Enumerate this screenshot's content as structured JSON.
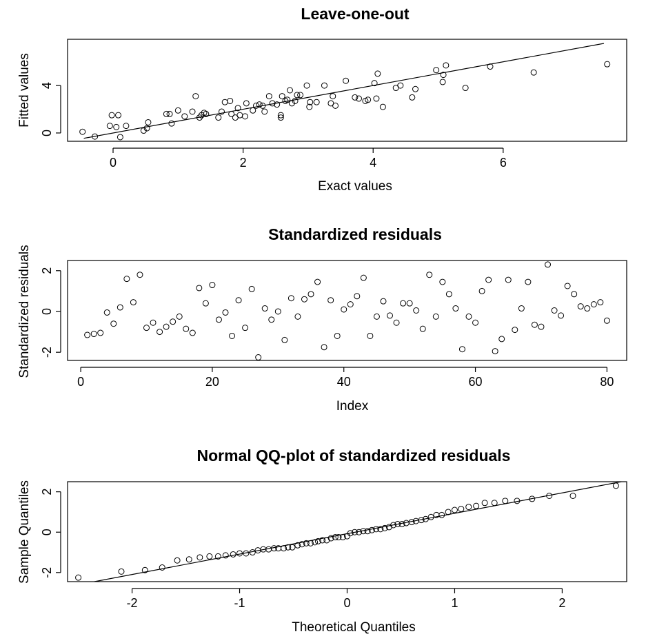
{
  "chart_data": [
    {
      "type": "scatter",
      "title": "Leave-one-out",
      "xlabel": "Exact values",
      "ylabel": "Fitted values",
      "xlim": [
        -0.7,
        7.9
      ],
      "ylim": [
        -0.7,
        7.9
      ],
      "xticks": [
        0,
        2,
        4,
        6
      ],
      "yticks": [
        0,
        4
      ],
      "grid": false,
      "ref_line": [
        [
          -0.45,
          -0.45
        ],
        [
          7.55,
          7.55
        ]
      ],
      "points": [
        {
          "x": -0.47,
          "y": 0.1
        },
        {
          "x": -0.28,
          "y": -0.3
        },
        {
          "x": -0.05,
          "y": 0.6
        },
        {
          "x": -0.02,
          "y": 1.5
        },
        {
          "x": 0.05,
          "y": 0.5
        },
        {
          "x": 0.08,
          "y": 1.5
        },
        {
          "x": 0.11,
          "y": -0.35
        },
        {
          "x": 0.2,
          "y": 0.6
        },
        {
          "x": 0.47,
          "y": 0.2
        },
        {
          "x": 0.52,
          "y": 0.4
        },
        {
          "x": 0.54,
          "y": 0.9
        },
        {
          "x": 0.82,
          "y": 1.6
        },
        {
          "x": 0.87,
          "y": 1.6
        },
        {
          "x": 0.9,
          "y": 0.8
        },
        {
          "x": 1.0,
          "y": 1.9
        },
        {
          "x": 1.1,
          "y": 1.4
        },
        {
          "x": 1.22,
          "y": 1.8
        },
        {
          "x": 1.27,
          "y": 3.1
        },
        {
          "x": 1.33,
          "y": 1.3
        },
        {
          "x": 1.36,
          "y": 1.5
        },
        {
          "x": 1.4,
          "y": 1.7
        },
        {
          "x": 1.43,
          "y": 1.6
        },
        {
          "x": 1.62,
          "y": 1.3
        },
        {
          "x": 1.67,
          "y": 1.8
        },
        {
          "x": 1.72,
          "y": 2.6
        },
        {
          "x": 1.8,
          "y": 2.7
        },
        {
          "x": 1.82,
          "y": 1.6
        },
        {
          "x": 1.88,
          "y": 1.3
        },
        {
          "x": 1.92,
          "y": 2.1
        },
        {
          "x": 1.95,
          "y": 1.5
        },
        {
          "x": 2.03,
          "y": 1.4
        },
        {
          "x": 2.05,
          "y": 2.5
        },
        {
          "x": 2.15,
          "y": 1.9
        },
        {
          "x": 2.2,
          "y": 2.3
        },
        {
          "x": 2.25,
          "y": 2.4
        },
        {
          "x": 2.3,
          "y": 2.3
        },
        {
          "x": 2.33,
          "y": 1.8
        },
        {
          "x": 2.4,
          "y": 3.1
        },
        {
          "x": 2.45,
          "y": 2.5
        },
        {
          "x": 2.52,
          "y": 2.4
        },
        {
          "x": 2.58,
          "y": 1.3
        },
        {
          "x": 2.58,
          "y": 1.5
        },
        {
          "x": 2.6,
          "y": 3.1
        },
        {
          "x": 2.65,
          "y": 2.7
        },
        {
          "x": 2.68,
          "y": 2.8
        },
        {
          "x": 2.72,
          "y": 3.6
        },
        {
          "x": 2.75,
          "y": 2.5
        },
        {
          "x": 2.8,
          "y": 2.7
        },
        {
          "x": 2.83,
          "y": 3.2
        },
        {
          "x": 2.88,
          "y": 3.2
        },
        {
          "x": 2.98,
          "y": 4.0
        },
        {
          "x": 3.02,
          "y": 2.2
        },
        {
          "x": 3.03,
          "y": 2.6
        },
        {
          "x": 3.13,
          "y": 2.6
        },
        {
          "x": 3.25,
          "y": 4.0
        },
        {
          "x": 3.35,
          "y": 2.5
        },
        {
          "x": 3.38,
          "y": 3.1
        },
        {
          "x": 3.42,
          "y": 2.3
        },
        {
          "x": 3.58,
          "y": 4.4
        },
        {
          "x": 3.72,
          "y": 3.0
        },
        {
          "x": 3.78,
          "y": 2.9
        },
        {
          "x": 3.88,
          "y": 2.7
        },
        {
          "x": 3.92,
          "y": 2.8
        },
        {
          "x": 4.02,
          "y": 4.2
        },
        {
          "x": 4.05,
          "y": 2.9
        },
        {
          "x": 4.07,
          "y": 5.0
        },
        {
          "x": 4.15,
          "y": 2.2
        },
        {
          "x": 4.35,
          "y": 3.8
        },
        {
          "x": 4.42,
          "y": 4.0
        },
        {
          "x": 4.6,
          "y": 3.0
        },
        {
          "x": 4.65,
          "y": 3.7
        },
        {
          "x": 4.97,
          "y": 5.3
        },
        {
          "x": 5.07,
          "y": 4.3
        },
        {
          "x": 5.08,
          "y": 4.9
        },
        {
          "x": 5.12,
          "y": 5.7
        },
        {
          "x": 5.42,
          "y": 3.8
        },
        {
          "x": 5.8,
          "y": 5.6
        },
        {
          "x": 6.47,
          "y": 5.1
        },
        {
          "x": 7.6,
          "y": 5.8
        }
      ]
    },
    {
      "type": "scatter",
      "title": "Standardized residuals",
      "xlabel": "Index",
      "ylabel": "Standardized residuals",
      "xlim": [
        -2,
        83
      ],
      "ylim": [
        -2.4,
        2.5
      ],
      "xticks": [
        0,
        20,
        40,
        60,
        80
      ],
      "yticks": [
        -2,
        0,
        2
      ],
      "grid": false,
      "values": [
        -1.15,
        -1.1,
        -1.05,
        -0.05,
        -0.6,
        0.2,
        1.6,
        0.45,
        1.8,
        -0.8,
        -0.55,
        -1.0,
        -0.75,
        -0.5,
        -0.25,
        -0.85,
        -1.05,
        1.15,
        0.4,
        1.3,
        -0.4,
        -0.05,
        -1.2,
        0.55,
        -0.8,
        1.1,
        -2.25,
        0.15,
        -0.4,
        0.0,
        -1.4,
        0.65,
        -0.25,
        0.6,
        0.85,
        1.45,
        -1.75,
        0.55,
        -1.2,
        0.1,
        0.35,
        0.75,
        1.65,
        -1.2,
        -0.25,
        0.5,
        -0.2,
        -0.55,
        0.4,
        0.4,
        0.05,
        -0.85,
        1.8,
        -0.25,
        1.45,
        0.85,
        0.15,
        -1.85,
        -0.25,
        -0.55,
        1.0,
        1.55,
        -1.95,
        -1.35,
        1.55,
        -0.9,
        0.15,
        1.45,
        -0.65,
        -0.75,
        2.3,
        0.05,
        -0.2,
        1.25,
        0.85,
        0.25,
        0.15,
        0.35,
        0.45,
        -0.45
      ]
    },
    {
      "type": "scatter",
      "title": "Normal QQ-plot of standardized residuals",
      "xlabel": "Theoretical Quantiles",
      "ylabel": "Sample Quantiles",
      "xlim": [
        -2.6,
        2.6
      ],
      "ylim": [
        -2.45,
        2.5
      ],
      "xticks": [
        -2,
        -1,
        0,
        1,
        2
      ],
      "yticks": [
        -2,
        0,
        2
      ],
      "grid": false,
      "ref_line": [
        [
          -2.35,
          -2.45
        ],
        [
          2.55,
          2.55
        ]
      ],
      "points": [
        {
          "x": -2.5,
          "y": -2.25
        },
        {
          "x": -2.1,
          "y": -1.95
        },
        {
          "x": -1.88,
          "y": -1.88
        },
        {
          "x": -1.72,
          "y": -1.75
        },
        {
          "x": -1.58,
          "y": -1.4
        },
        {
          "x": -1.47,
          "y": -1.35
        },
        {
          "x": -1.37,
          "y": -1.25
        },
        {
          "x": -1.28,
          "y": -1.2
        },
        {
          "x": -1.2,
          "y": -1.2
        },
        {
          "x": -1.13,
          "y": -1.15
        },
        {
          "x": -1.06,
          "y": -1.1
        },
        {
          "x": -1.0,
          "y": -1.05
        },
        {
          "x": -0.94,
          "y": -1.05
        },
        {
          "x": -0.88,
          "y": -1.0
        },
        {
          "x": -0.83,
          "y": -0.9
        },
        {
          "x": -0.78,
          "y": -0.85
        },
        {
          "x": -0.73,
          "y": -0.85
        },
        {
          "x": -0.68,
          "y": -0.8
        },
        {
          "x": -0.64,
          "y": -0.8
        },
        {
          "x": -0.59,
          "y": -0.8
        },
        {
          "x": -0.55,
          "y": -0.75
        },
        {
          "x": -0.51,
          "y": -0.75
        },
        {
          "x": -0.46,
          "y": -0.65
        },
        {
          "x": -0.42,
          "y": -0.6
        },
        {
          "x": -0.38,
          "y": -0.55
        },
        {
          "x": -0.34,
          "y": -0.55
        },
        {
          "x": -0.3,
          "y": -0.5
        },
        {
          "x": -0.27,
          "y": -0.45
        },
        {
          "x": -0.23,
          "y": -0.4
        },
        {
          "x": -0.19,
          "y": -0.4
        },
        {
          "x": -0.15,
          "y": -0.3
        },
        {
          "x": -0.11,
          "y": -0.25
        },
        {
          "x": -0.08,
          "y": -0.25
        },
        {
          "x": -0.04,
          "y": -0.25
        },
        {
          "x": 0.0,
          "y": -0.2
        },
        {
          "x": 0.03,
          "y": -0.05
        },
        {
          "x": 0.07,
          "y": 0.0
        },
        {
          "x": 0.11,
          "y": 0.0
        },
        {
          "x": 0.15,
          "y": 0.05
        },
        {
          "x": 0.19,
          "y": 0.05
        },
        {
          "x": 0.23,
          "y": 0.1
        },
        {
          "x": 0.27,
          "y": 0.15
        },
        {
          "x": 0.31,
          "y": 0.15
        },
        {
          "x": 0.35,
          "y": 0.2
        },
        {
          "x": 0.39,
          "y": 0.25
        },
        {
          "x": 0.43,
          "y": 0.35
        },
        {
          "x": 0.47,
          "y": 0.4
        },
        {
          "x": 0.51,
          "y": 0.4
        },
        {
          "x": 0.55,
          "y": 0.45
        },
        {
          "x": 0.6,
          "y": 0.5
        },
        {
          "x": 0.64,
          "y": 0.55
        },
        {
          "x": 0.69,
          "y": 0.6
        },
        {
          "x": 0.73,
          "y": 0.65
        },
        {
          "x": 0.78,
          "y": 0.75
        },
        {
          "x": 0.83,
          "y": 0.85
        },
        {
          "x": 0.88,
          "y": 0.85
        },
        {
          "x": 0.94,
          "y": 1.0
        },
        {
          "x": 1.0,
          "y": 1.1
        },
        {
          "x": 1.06,
          "y": 1.15
        },
        {
          "x": 1.13,
          "y": 1.25
        },
        {
          "x": 1.2,
          "y": 1.3
        },
        {
          "x": 1.28,
          "y": 1.45
        },
        {
          "x": 1.37,
          "y": 1.45
        },
        {
          "x": 1.47,
          "y": 1.55
        },
        {
          "x": 1.58,
          "y": 1.55
        },
        {
          "x": 1.72,
          "y": 1.65
        },
        {
          "x": 1.88,
          "y": 1.8
        },
        {
          "x": 2.1,
          "y": 1.8
        },
        {
          "x": 2.5,
          "y": 2.3
        }
      ]
    }
  ]
}
